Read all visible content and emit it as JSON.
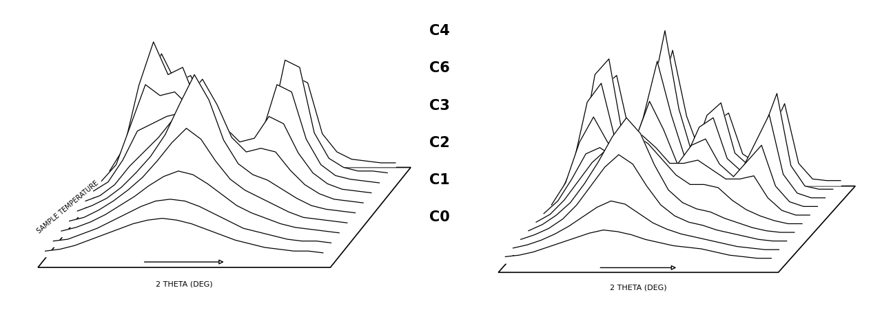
{
  "chart_data": [
    {
      "type": "waterfall",
      "x_label": "2 THETA (DEG)",
      "y_label": "SAMPLE TEMPERATURE",
      "tick_labels": false,
      "color": "#000000",
      "curves": [
        [
          0.3,
          0.4,
          0.6,
          0.9,
          1.2,
          1.5,
          1.8,
          2.0,
          2.1,
          2.0,
          1.8,
          1.5,
          1.2,
          0.9,
          0.7,
          0.5,
          0.4,
          0.3,
          0.3,
          0.2
        ],
        [
          0.3,
          0.4,
          0.7,
          1.0,
          1.4,
          1.8,
          2.2,
          2.5,
          2.6,
          2.5,
          2.2,
          1.8,
          1.4,
          1.0,
          0.8,
          0.6,
          0.4,
          0.3,
          0.3,
          0.2
        ],
        [
          0.3,
          0.5,
          0.8,
          1.2,
          1.7,
          2.2,
          2.8,
          3.3,
          3.6,
          3.4,
          2.9,
          2.3,
          1.7,
          1.3,
          1.0,
          0.7,
          0.5,
          0.4,
          0.3,
          0.2
        ],
        [
          0.3,
          0.5,
          0.9,
          1.4,
          2.0,
          2.7,
          3.6,
          4.6,
          5.4,
          4.8,
          3.6,
          2.6,
          2.0,
          1.6,
          1.2,
          0.8,
          0.5,
          0.4,
          0.3,
          0.2
        ],
        [
          0.3,
          0.6,
          1.0,
          1.6,
          2.4,
          3.3,
          4.5,
          6.2,
          7.8,
          6.4,
          4.2,
          2.9,
          2.3,
          2.0,
          1.5,
          1.0,
          0.6,
          0.4,
          0.3,
          0.2
        ],
        [
          0.3,
          0.6,
          1.2,
          2.2,
          3.0,
          3.8,
          4.8,
          6.0,
          7.0,
          5.6,
          3.8,
          3.0,
          3.2,
          3.0,
          2.0,
          1.2,
          0.7,
          0.4,
          0.3,
          0.2
        ],
        [
          0.3,
          0.8,
          2.0,
          3.6,
          4.0,
          4.4,
          4.6,
          4.8,
          4.6,
          3.8,
          3.0,
          3.2,
          4.4,
          4.0,
          2.4,
          1.3,
          0.7,
          0.4,
          0.3,
          0.2
        ],
        [
          0.3,
          1.2,
          3.4,
          5.6,
          5.0,
          5.2,
          4.4,
          3.6,
          3.0,
          2.4,
          2.2,
          3.0,
          5.6,
          5.2,
          2.6,
          1.2,
          0.6,
          0.4,
          0.3,
          0.2
        ],
        [
          0.3,
          1.6,
          5.0,
          7.4,
          5.6,
          6.0,
          4.0,
          2.6,
          1.8,
          1.4,
          1.4,
          2.6,
          6.4,
          6.0,
          2.4,
          1.0,
          0.5,
          0.3,
          0.3,
          0.2
        ],
        [
          0.3,
          1.4,
          4.2,
          6.2,
          4.6,
          5.0,
          3.2,
          2.0,
          1.4,
          1.0,
          1.0,
          2.0,
          5.0,
          4.6,
          1.8,
          0.8,
          0.4,
          0.3,
          0.2,
          0.2
        ]
      ]
    },
    {
      "type": "waterfall",
      "x_label": "2 THETA (DEG)",
      "tick_labels": false,
      "color": "#000000",
      "curves": [
        [
          0.4,
          0.5,
          0.7,
          1.0,
          1.3,
          1.6,
          1.9,
          2.1,
          2.0,
          1.8,
          1.5,
          1.3,
          1.1,
          1.0,
          0.9,
          0.7,
          0.5,
          0.4,
          0.3,
          0.3
        ],
        [
          0.4,
          0.6,
          0.9,
          1.3,
          1.8,
          2.4,
          3.0,
          3.4,
          3.2,
          2.6,
          2.0,
          1.6,
          1.3,
          1.1,
          0.9,
          0.7,
          0.5,
          0.4,
          0.3,
          0.3
        ],
        [
          0.4,
          0.7,
          1.1,
          1.7,
          2.6,
          3.8,
          5.0,
          5.8,
          5.2,
          3.8,
          2.6,
          1.9,
          1.5,
          1.3,
          1.0,
          0.8,
          0.6,
          0.4,
          0.3,
          0.3
        ],
        [
          0.4,
          0.8,
          1.4,
          2.2,
          3.4,
          4.8,
          6.4,
          7.6,
          6.6,
          4.6,
          3.0,
          2.2,
          1.8,
          1.6,
          1.2,
          0.9,
          0.6,
          0.4,
          0.3,
          0.3
        ],
        [
          0.4,
          0.9,
          1.8,
          3.0,
          4.2,
          5.0,
          5.6,
          6.0,
          5.4,
          4.4,
          3.4,
          2.8,
          2.8,
          2.6,
          1.8,
          1.2,
          0.8,
          0.5,
          0.3,
          0.3
        ],
        [
          0.4,
          1.2,
          2.6,
          4.2,
          4.6,
          4.0,
          4.2,
          5.4,
          4.6,
          3.6,
          3.6,
          3.8,
          3.2,
          2.6,
          2.6,
          2.8,
          1.4,
          0.6,
          0.3,
          0.3
        ],
        [
          0.4,
          1.8,
          4.4,
          6.0,
          4.4,
          3.2,
          4.6,
          7.0,
          5.2,
          3.0,
          4.2,
          4.6,
          3.0,
          2.2,
          3.2,
          4.2,
          1.6,
          0.6,
          0.3,
          0.3
        ],
        [
          0.4,
          2.4,
          6.4,
          7.6,
          4.0,
          2.8,
          5.4,
          9.0,
          5.6,
          2.8,
          4.8,
          5.4,
          2.8,
          2.0,
          3.8,
          5.6,
          1.8,
          0.6,
          0.3,
          0.3
        ],
        [
          0.4,
          2.6,
          7.6,
          8.6,
          3.6,
          2.4,
          6.0,
          10.4,
          5.4,
          2.4,
          5.0,
          5.8,
          2.6,
          1.8,
          4.0,
          6.4,
          1.8,
          0.5,
          0.3,
          0.3
        ],
        [
          0.4,
          2.0,
          6.2,
          7.0,
          3.0,
          2.0,
          5.2,
          8.6,
          4.4,
          2.0,
          4.0,
          4.6,
          2.0,
          1.4,
          3.2,
          5.2,
          1.4,
          0.4,
          0.3,
          0.3
        ]
      ]
    }
  ],
  "annotations": [
    "C4",
    "C6",
    "C3",
    "C2",
    "C1",
    "C0"
  ]
}
